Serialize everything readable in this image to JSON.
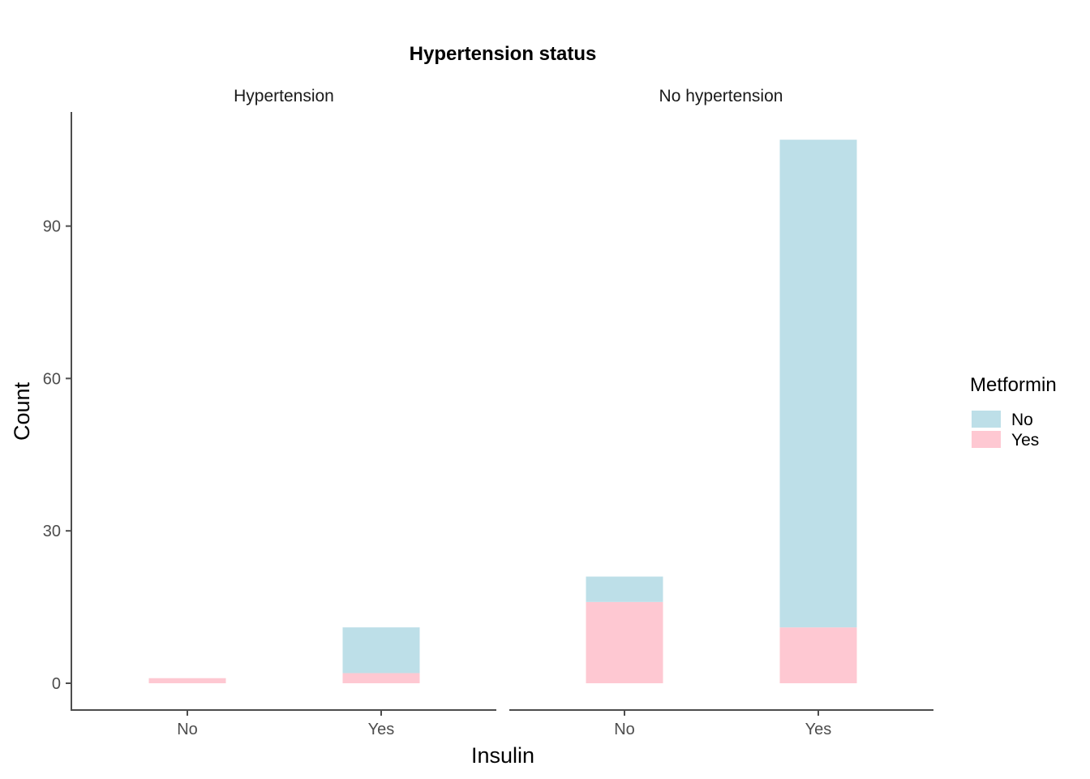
{
  "chart_data": {
    "type": "bar",
    "stacked": true,
    "title": "Hypertension status",
    "xlabel": "Insulin",
    "ylabel": "Count",
    "ylim": [
      -5,
      112
    ],
    "yticks": [
      0,
      30,
      60,
      90
    ],
    "categories": [
      "No",
      "Yes"
    ],
    "legend": {
      "title": "Metformin",
      "position": "right",
      "entries": [
        {
          "label": "No",
          "color": "#BDDFE8"
        },
        {
          "label": "Yes",
          "color": "#FEC8D2"
        }
      ]
    },
    "panels": [
      {
        "name": "Hypertension",
        "series": [
          {
            "name": "Yes",
            "values": [
              1,
              2
            ]
          },
          {
            "name": "No",
            "values": [
              0,
              9
            ]
          }
        ]
      },
      {
        "name": "No hypertension",
        "series": [
          {
            "name": "Yes",
            "values": [
              16,
              11
            ]
          },
          {
            "name": "No",
            "values": [
              5,
              96
            ]
          }
        ]
      }
    ],
    "grid": false
  }
}
